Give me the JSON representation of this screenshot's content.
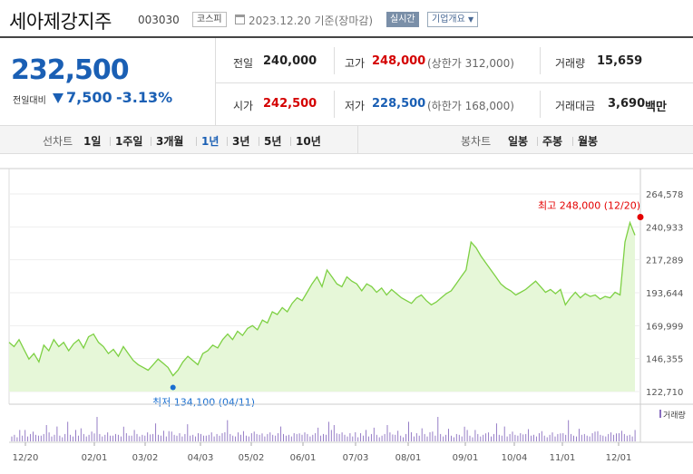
{
  "stock": {
    "name": "세아제강지주",
    "code": "003030",
    "market": "코스피",
    "date": "2023.12.20 기준(장마감)",
    "live_label": "실시간",
    "company_info_label": "기업개요"
  },
  "quote": {
    "price": "232,500",
    "change_label": "전일대비",
    "change": "7,500",
    "change_pct": "-3.13%",
    "prev_label": "전일",
    "prev": "240,000",
    "open_label": "시가",
    "open": "242,500",
    "high_label": "고가",
    "high": "248,000",
    "upper_limit": "(상한가 312,000)",
    "low_label": "저가",
    "low": "228,500",
    "lower_limit": "(하한가 168,000)",
    "volume_label": "거래량",
    "volume": "15,659",
    "amount_label": "거래대금",
    "amount": "3,690",
    "amount_unit": "백만"
  },
  "period_bar": {
    "line_label": "선차트",
    "line_periods": [
      "1일",
      "1주일",
      "3개월",
      "1년",
      "3년",
      "5년",
      "10년"
    ],
    "active_period": "1년",
    "candle_label": "봉차트",
    "candle_periods": [
      "일봉",
      "주봉",
      "월봉"
    ]
  },
  "chart_data": {
    "type": "area",
    "ylim": [
      122710,
      264578
    ],
    "y_ticks": [
      "264,578",
      "240,933",
      "217,289",
      "193,644",
      "169,999",
      "146,355",
      "122,710"
    ],
    "x_ticks": [
      "12/20",
      "02/01",
      "03/02",
      "04/03",
      "05/02",
      "06/01",
      "07/03",
      "08/01",
      "09/01",
      "10/04",
      "11/01",
      "12/01"
    ],
    "max_label": "최고 248,000 (12/20)",
    "min_label": "최저 134,100 (04/11)",
    "volume_label": "거래량",
    "colors": {
      "line": "#7dd043",
      "fill": "#e6f7d8",
      "max": "#e40000",
      "min": "#1a6fd0"
    },
    "price": [
      158000,
      155000,
      160000,
      153000,
      146000,
      150000,
      144000,
      156000,
      152000,
      160000,
      155000,
      158000,
      152000,
      157000,
      160000,
      154000,
      162000,
      164000,
      158000,
      155000,
      150000,
      153000,
      148000,
      155000,
      150000,
      145000,
      142000,
      140000,
      138000,
      142000,
      146000,
      143000,
      140000,
      134100,
      138000,
      144000,
      148000,
      145000,
      142000,
      150000,
      152000,
      156000,
      154000,
      160000,
      164000,
      160000,
      166000,
      163000,
      168000,
      170000,
      167000,
      174000,
      172000,
      180000,
      178000,
      183000,
      180000,
      186000,
      190000,
      188000,
      194000,
      200000,
      205000,
      198000,
      210000,
      205000,
      200000,
      198000,
      205000,
      202000,
      200000,
      195000,
      200000,
      198000,
      194000,
      197000,
      192000,
      196000,
      193000,
      190000,
      188000,
      186000,
      190000,
      192000,
      188000,
      185000,
      187000,
      190000,
      193000,
      195000,
      200000,
      205000,
      210000,
      230000,
      226000,
      220000,
      215000,
      210000,
      205000,
      200000,
      197000,
      195000,
      192000,
      194000,
      196000,
      199000,
      202000,
      198000,
      194000,
      196000,
      193000,
      196000,
      185000,
      190000,
      194000,
      190000,
      193000,
      191000,
      192000,
      189000,
      191000,
      190000,
      194000,
      192000,
      230000,
      244000,
      235000
    ]
  }
}
